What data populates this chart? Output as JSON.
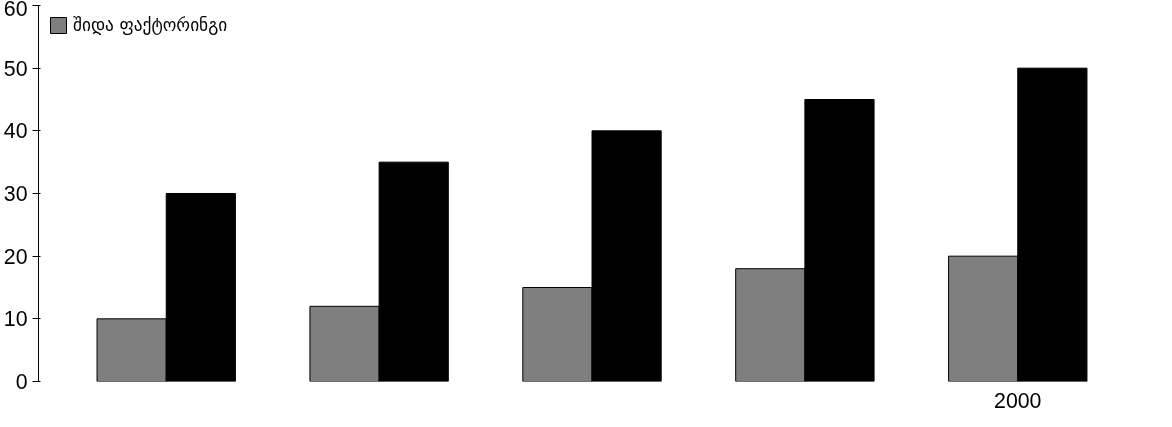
{
  "chart_data": {
    "type": "bar",
    "categories": [
      null,
      null,
      null,
      null,
      "2000"
    ],
    "series": [
      {
        "name": "შიდა ფაქტორინგი",
        "color": "#7f7f7f",
        "values": [
          10,
          12,
          15,
          18,
          20
        ]
      },
      {
        "color": "#000000",
        "values": [
          30,
          35,
          40,
          45,
          50
        ]
      }
    ],
    "ylim": [
      0,
      60
    ],
    "yticks": [
      0,
      10,
      20,
      30,
      40,
      50,
      60
    ],
    "legend": "top left"
  }
}
